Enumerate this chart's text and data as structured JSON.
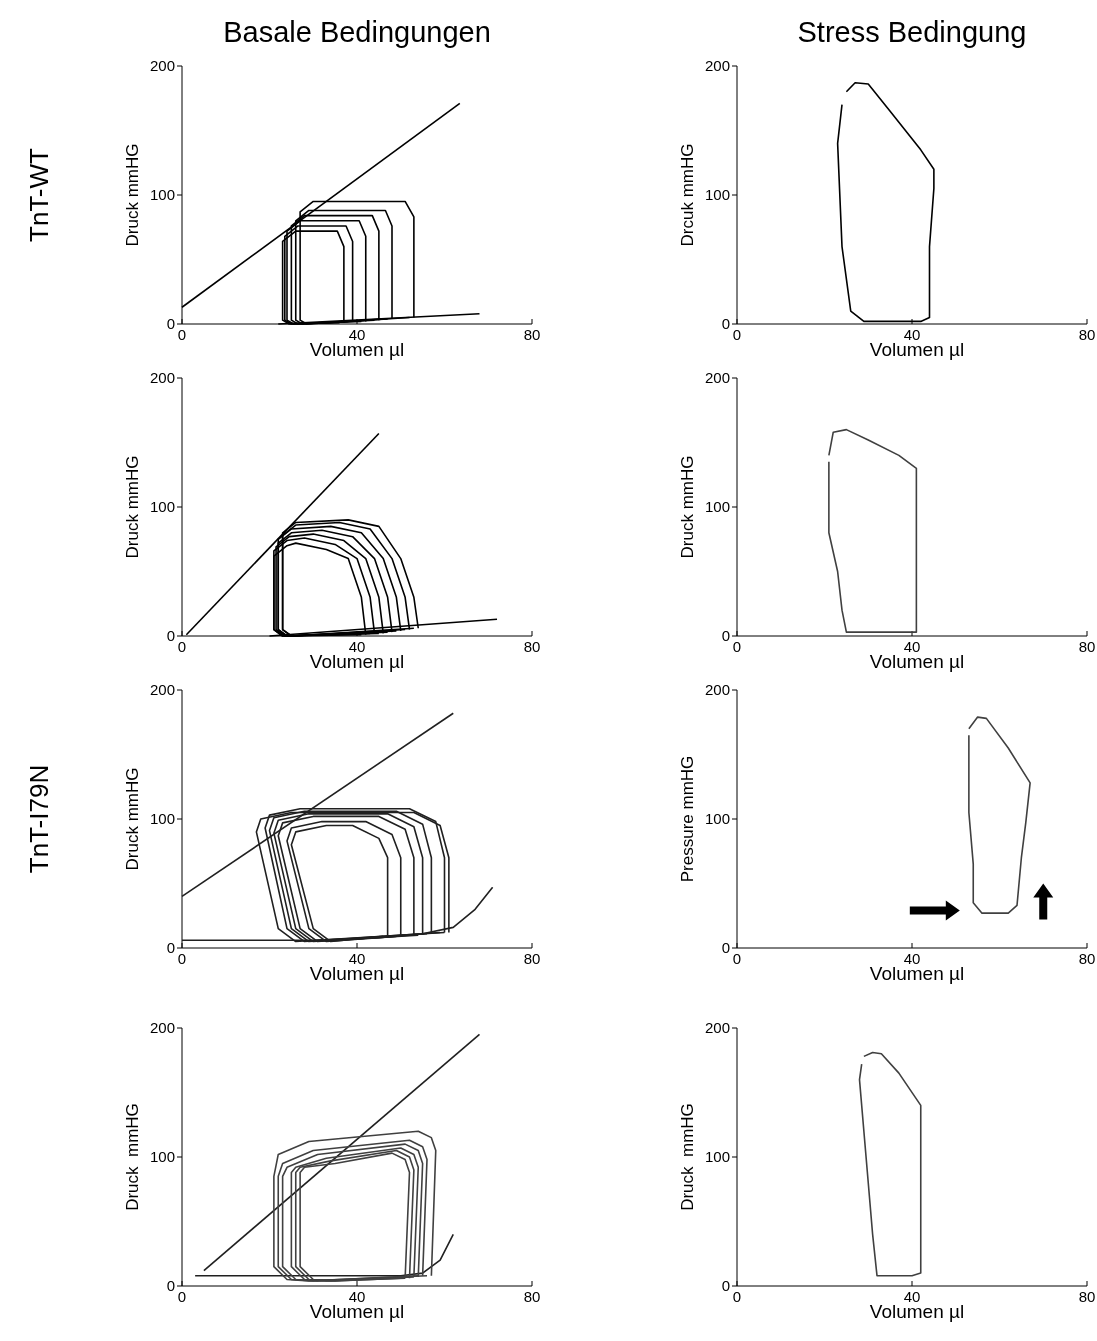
{
  "chart_data": [
    {
      "type": "line",
      "title": "Basale Bedingungen",
      "annotations": [
        "TnT-WT"
      ],
      "xlabel": "Volumen µl",
      "ylabel": "Druck mmHG",
      "xlim": [
        0,
        80
      ],
      "xticks": [
        0,
        40,
        80
      ],
      "ylim": [
        0,
        200
      ],
      "yticks": [
        0,
        100,
        200
      ],
      "series": [
        {
          "color": "#000000",
          "x": [
            0,
            63.5
          ],
          "values": [
            13,
            171
          ]
        },
        {
          "color": "#000000",
          "x": [
            22,
            68
          ],
          "values": [
            0,
            8
          ]
        },
        {
          "color": "#000000",
          "x": [
            37,
            37,
            35.5,
            26,
            23,
            23,
            24.5,
            36
          ],
          "values": [
            1,
            60,
            72,
            72,
            64,
            3,
            0,
            1
          ]
        },
        {
          "color": "#000000",
          "x": [
            39,
            39,
            37.5,
            26.5,
            23.5,
            23.5,
            25,
            38
          ],
          "values": [
            2,
            64,
            76,
            76,
            68,
            3,
            0,
            2
          ]
        },
        {
          "color": "#000000",
          "x": [
            42,
            42,
            40.5,
            27,
            24,
            24,
            25.5,
            41
          ],
          "values": [
            2,
            68,
            80,
            80,
            72,
            3,
            0,
            2
          ]
        },
        {
          "color": "#000000",
          "x": [
            45,
            45,
            43.5,
            28,
            25,
            25,
            26.5,
            44
          ],
          "values": [
            3,
            72,
            84,
            84,
            76,
            3,
            0,
            3
          ]
        },
        {
          "color": "#000000",
          "x": [
            48,
            48,
            46.5,
            29,
            26,
            26,
            27.5,
            47
          ],
          "values": [
            4,
            76,
            88,
            88,
            80,
            3,
            0,
            4
          ]
        },
        {
          "color": "#000000",
          "x": [
            53,
            53,
            51,
            30,
            27,
            27,
            28.5,
            52
          ],
          "values": [
            5,
            83,
            95,
            95,
            87,
            3,
            0,
            5
          ]
        }
      ]
    },
    {
      "type": "line",
      "title": "Stress Bedingung",
      "xlabel": "Volumen µl",
      "ylabel": "Drcuk mmHG",
      "xlim": [
        0,
        80
      ],
      "xticks": [
        0,
        40,
        80
      ],
      "ylim": [
        0,
        200
      ],
      "yticks": [
        0,
        100,
        200
      ],
      "series": [
        {
          "color": "#000000",
          "x": [
            25,
            27,
            30,
            35,
            42,
            45,
            45,
            44,
            44,
            42,
            29,
            26,
            24,
            23,
            24
          ],
          "values": [
            180,
            187,
            186,
            165,
            135,
            120,
            105,
            60,
            5,
            2,
            2,
            10,
            60,
            140,
            170
          ]
        }
      ]
    },
    {
      "type": "line",
      "xlabel": "Volumen µl",
      "ylabel": "Druck mmHG",
      "xlim": [
        0,
        80
      ],
      "xticks": [
        0,
        40,
        80
      ],
      "ylim": [
        0,
        200
      ],
      "yticks": [
        0,
        100,
        200
      ],
      "series": [
        {
          "color": "#000000",
          "x": [
            1,
            45
          ],
          "values": [
            1,
            157
          ]
        },
        {
          "color": "#000000",
          "x": [
            20,
            72
          ],
          "values": [
            0,
            13
          ]
        },
        {
          "color": "#000000",
          "x": [
            42,
            41,
            38,
            33,
            26,
            24,
            21,
            21,
            23,
            41
          ],
          "values": [
            1,
            30,
            60,
            67,
            72,
            70,
            62,
            5,
            0,
            1
          ]
        },
        {
          "color": "#000000",
          "x": [
            44,
            43,
            40,
            35,
            28,
            24,
            21,
            21,
            23,
            43
          ],
          "values": [
            2,
            30,
            60,
            71,
            76,
            74,
            66,
            5,
            0,
            2
          ]
        },
        {
          "color": "#000000",
          "x": [
            46,
            45,
            42,
            37,
            30,
            24.5,
            21.5,
            21.5,
            23.5,
            45
          ],
          "values": [
            2,
            30,
            60,
            74,
            79,
            77,
            69,
            5,
            0,
            2
          ]
        },
        {
          "color": "#000000",
          "x": [
            48,
            47,
            44,
            39,
            32,
            25,
            22,
            22,
            24,
            47
          ],
          "values": [
            3,
            30,
            60,
            77,
            82,
            80,
            72,
            5,
            0,
            3
          ]
        },
        {
          "color": "#000000",
          "x": [
            50,
            49,
            46,
            41,
            34,
            25,
            22,
            22,
            24,
            49
          ],
          "values": [
            4,
            30,
            60,
            80,
            85,
            83,
            75,
            5,
            0,
            4
          ]
        },
        {
          "color": "#000000",
          "x": [
            52,
            51,
            48,
            43,
            36,
            26,
            23,
            23,
            25,
            51
          ],
          "values": [
            5,
            30,
            60,
            83,
            88,
            86,
            78,
            5,
            0,
            5
          ]
        },
        {
          "color": "#000000",
          "x": [
            54,
            53,
            50,
            45,
            38,
            26,
            23,
            23,
            25,
            53
          ],
          "values": [
            6,
            30,
            60,
            85,
            90,
            88,
            80,
            5,
            0,
            6
          ]
        }
      ]
    },
    {
      "type": "line",
      "xlabel": "Volumen µl",
      "ylabel": "Druck mmHG",
      "xlim": [
        0,
        80
      ],
      "xticks": [
        0,
        40,
        80
      ],
      "ylim": [
        0,
        200
      ],
      "yticks": [
        0,
        100,
        200
      ],
      "series": [
        {
          "color": "#404040",
          "x": [
            21,
            22,
            25,
            30,
            37,
            41,
            41,
            41,
            39,
            25,
            24,
            23,
            21,
            21
          ],
          "values": [
            140,
            158,
            160,
            152,
            140,
            130,
            90,
            3,
            3,
            3,
            20,
            50,
            80,
            135
          ]
        }
      ]
    },
    {
      "type": "line",
      "annotations": [
        "TnT-I79N"
      ],
      "xlabel": "Volumen µl",
      "ylabel": "Druck mmHG",
      "xlim": [
        0,
        80
      ],
      "xticks": [
        0,
        40,
        80
      ],
      "ylim": [
        0,
        200
      ],
      "yticks": [
        0,
        100,
        200
      ],
      "series": [
        {
          "color": "#202020",
          "x": [
            0,
            62
          ],
          "values": [
            40,
            182
          ]
        },
        {
          "color": "#202020",
          "x": [
            0,
            30,
            45,
            55,
            62,
            67,
            71
          ],
          "values": [
            6,
            6,
            8,
            11,
            16,
            30,
            47
          ]
        },
        {
          "color": "#202020",
          "x": [
            61,
            61,
            59,
            53,
            25,
            18,
            17,
            22,
            26,
            60
          ],
          "values": [
            12,
            70,
            95,
            105,
            105,
            100,
            90,
            15,
            5,
            12
          ]
        },
        {
          "color": "#202020",
          "x": [
            60,
            60,
            58,
            52,
            27,
            20,
            19,
            24,
            28,
            59
          ],
          "values": [
            12,
            70,
            98,
            108,
            108,
            103,
            93,
            15,
            5,
            12
          ]
        },
        {
          "color": "#202020",
          "x": [
            57,
            57,
            55,
            49,
            28,
            21,
            20,
            25,
            29,
            56
          ],
          "values": [
            11,
            70,
            96,
            106,
            106,
            101,
            91,
            15,
            5,
            11
          ]
        },
        {
          "color": "#202020",
          "x": [
            55,
            55,
            53,
            47,
            29,
            22,
            21,
            26,
            30,
            54
          ],
          "values": [
            10,
            70,
            94,
            104,
            104,
            99,
            89,
            15,
            5,
            10
          ]
        },
        {
          "color": "#202020",
          "x": [
            53,
            53,
            51,
            45,
            30,
            23,
            22,
            27,
            31,
            52
          ],
          "values": [
            10,
            70,
            92,
            102,
            102,
            97,
            87,
            15,
            5,
            10
          ]
        },
        {
          "color": "#202020",
          "x": [
            50,
            50,
            48,
            42,
            32,
            25,
            24,
            29,
            33,
            49
          ],
          "values": [
            9,
            70,
            88,
            98,
            98,
            93,
            83,
            15,
            5,
            9
          ]
        },
        {
          "color": "#202020",
          "x": [
            47,
            47,
            45,
            39,
            33,
            26,
            25,
            30,
            34,
            46
          ],
          "values": [
            9,
            70,
            85,
            95,
            95,
            90,
            80,
            15,
            5,
            9
          ]
        }
      ]
    },
    {
      "type": "line",
      "xlabel": "Volumen µl",
      "ylabel": "Pressure mmHG",
      "xlim": [
        0,
        80
      ],
      "xticks": [
        0,
        40,
        80
      ],
      "ylim": [
        0,
        200
      ],
      "yticks": [
        0,
        100,
        200
      ],
      "series": [
        {
          "color": "#404040",
          "x": [
            53,
            55,
            57,
            62,
            67,
            66,
            65,
            64,
            62,
            56,
            54,
            54,
            53,
            53
          ],
          "values": [
            170,
            179,
            178,
            155,
            128,
            97,
            70,
            33,
            27,
            27,
            35,
            65,
            105,
            165
          ]
        }
      ]
    },
    {
      "type": "line",
      "xlabel": "Volumen µl",
      "ylabel": "Druck  mmHG",
      "xlim": [
        0,
        80
      ],
      "xticks": [
        0,
        40,
        80
      ],
      "ylim": [
        0,
        200
      ],
      "yticks": [
        0,
        100,
        200
      ],
      "series": [
        {
          "color": "#202020",
          "x": [
            5,
            68
          ],
          "values": [
            12,
            195
          ]
        },
        {
          "color": "#202020",
          "x": [
            3,
            50,
            55,
            59,
            62
          ],
          "values": [
            8,
            8,
            10,
            20,
            40
          ]
        },
        {
          "color": "#404040",
          "x": [
            57,
            58,
            57,
            54,
            29,
            22,
            21,
            21,
            24,
            29,
            56
          ],
          "values": [
            8,
            105,
            115,
            120,
            112,
            102,
            85,
            15,
            5,
            4,
            8
          ]
        },
        {
          "color": "#404040",
          "x": [
            55,
            56,
            55,
            52,
            30,
            23,
            22,
            22,
            25,
            30,
            54
          ],
          "values": [
            8,
            98,
            108,
            113,
            105,
            95,
            85,
            15,
            5,
            4,
            8
          ]
        },
        {
          "color": "#404040",
          "x": [
            54,
            55,
            54,
            51,
            31,
            24,
            23,
            23,
            26,
            31,
            53
          ],
          "values": [
            7,
            95,
            105,
            110,
            102,
            92,
            85,
            15,
            5,
            4,
            7
          ]
        },
        {
          "color": "#404040",
          "x": [
            53,
            54,
            53,
            50,
            33,
            26,
            25,
            25,
            28,
            33,
            52
          ],
          "values": [
            7,
            92,
            102,
            107,
            99,
            92,
            88,
            15,
            5,
            4,
            7
          ]
        },
        {
          "color": "#404040",
          "x": [
            52,
            53,
            52,
            49,
            34,
            27,
            26,
            26,
            29,
            34,
            51
          ],
          "values": [
            6,
            90,
            100,
            105,
            97,
            92,
            88,
            15,
            5,
            4,
            6
          ]
        },
        {
          "color": "#404040",
          "x": [
            51,
            52,
            51,
            48,
            35,
            28,
            27,
            27,
            30,
            35,
            50
          ],
          "values": [
            6,
            88,
            98,
            103,
            95,
            92,
            88,
            15,
            5,
            4,
            6
          ]
        }
      ]
    },
    {
      "type": "line",
      "xlabel": "Volumen µl",
      "ylabel": "Druck  mmHG",
      "xlim": [
        0,
        80
      ],
      "xticks": [
        0,
        40,
        80
      ],
      "ylim": [
        0,
        200
      ],
      "yticks": [
        0,
        100,
        200
      ],
      "series": [
        {
          "color": "#404040",
          "x": [
            29,
            31,
            33,
            37,
            42,
            42,
            42,
            40,
            32,
            31,
            30,
            29,
            28,
            28.5
          ],
          "values": [
            178,
            181,
            180,
            165,
            140,
            100,
            10,
            8,
            8,
            40,
            80,
            120,
            160,
            172
          ]
        }
      ]
    }
  ]
}
